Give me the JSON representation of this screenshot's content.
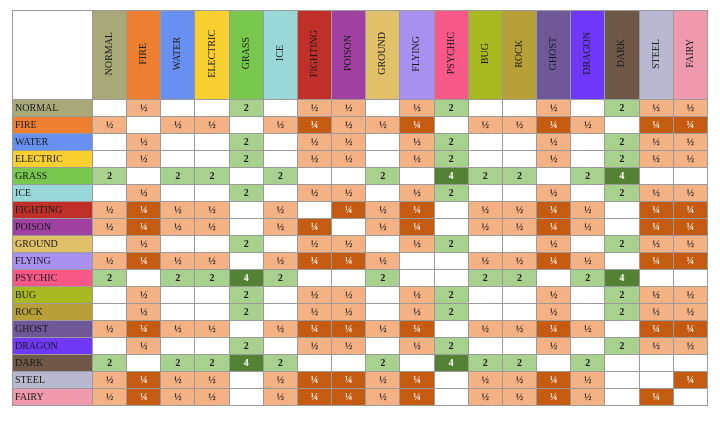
{
  "types": [
    {
      "name": "NORMAL",
      "color": "#a8a878"
    },
    {
      "name": "FIRE",
      "color": "#ee7f30"
    },
    {
      "name": "WATER",
      "color": "#6890f0"
    },
    {
      "name": "ELECTRIC",
      "color": "#f8d030"
    },
    {
      "name": "GRASS",
      "color": "#78c850"
    },
    {
      "name": "ICE",
      "color": "#98d8d8"
    },
    {
      "name": "FIGHTING",
      "color": "#c03028"
    },
    {
      "name": "POISON",
      "color": "#a040a0"
    },
    {
      "name": "GROUND",
      "color": "#e0c068"
    },
    {
      "name": "FLYING",
      "color": "#a890f0"
    },
    {
      "name": "PSYCHIC",
      "color": "#f85888"
    },
    {
      "name": "BUG",
      "color": "#a8b820"
    },
    {
      "name": "ROCK",
      "color": "#b8a038"
    },
    {
      "name": "GHOST",
      "color": "#705898"
    },
    {
      "name": "DRAGON",
      "color": "#7038f8"
    },
    {
      "name": "DARK",
      "color": "#705848"
    },
    {
      "name": "STEEL",
      "color": "#b8b8d0"
    },
    {
      "name": "FAIRY",
      "color": "#ee99ac"
    }
  ],
  "cell_colors": {
    "½": "#f4b183",
    "¼": "#c55a11",
    "2": "#a9d18e",
    "4": "#548235",
    "": "#ffffff"
  },
  "matrix": [
    [
      "",
      "½",
      "",
      "",
      "2",
      "",
      "½",
      "½",
      "",
      "½",
      "2",
      "",
      "",
      "½",
      "",
      "2",
      "½",
      "½"
    ],
    [
      "½",
      "",
      "½",
      "½",
      "",
      "½",
      "¼",
      "½",
      "½",
      "¼",
      "",
      "½",
      "½",
      "¼",
      "½",
      "",
      "¼",
      "¼"
    ],
    [
      "",
      "½",
      "",
      "",
      "2",
      "",
      "½",
      "½",
      "",
      "½",
      "2",
      "",
      "",
      "½",
      "",
      "2",
      "½",
      "½"
    ],
    [
      "",
      "½",
      "",
      "",
      "2",
      "",
      "½",
      "½",
      "",
      "½",
      "2",
      "",
      "",
      "½",
      "",
      "2",
      "½",
      "½"
    ],
    [
      "2",
      "",
      "2",
      "2",
      "",
      "2",
      "",
      "",
      "2",
      "",
      "4",
      "2",
      "2",
      "",
      "2",
      "4",
      "",
      ""
    ],
    [
      "",
      "½",
      "",
      "",
      "2",
      "",
      "½",
      "½",
      "",
      "½",
      "2",
      "",
      "",
      "½",
      "",
      "2",
      "½",
      "½"
    ],
    [
      "½",
      "¼",
      "½",
      "½",
      "",
      "½",
      "",
      "¼",
      "½",
      "¼",
      "",
      "½",
      "½",
      "¼",
      "½",
      "",
      "¼",
      "¼"
    ],
    [
      "½",
      "¼",
      "½",
      "½",
      "",
      "½",
      "¼",
      "",
      "½",
      "¼",
      "",
      "½",
      "½",
      "¼",
      "½",
      "",
      "¼",
      "¼"
    ],
    [
      "",
      "½",
      "",
      "",
      "2",
      "",
      "½",
      "½",
      "",
      "½",
      "2",
      "",
      "",
      "½",
      "",
      "2",
      "½",
      "½"
    ],
    [
      "½",
      "¼",
      "½",
      "½",
      "",
      "½",
      "¼",
      "¼",
      "½",
      "",
      "",
      "½",
      "½",
      "¼",
      "½",
      "",
      "¼",
      "¼"
    ],
    [
      "2",
      "",
      "2",
      "2",
      "4",
      "2",
      "",
      "",
      "2",
      "",
      "",
      "2",
      "2",
      "",
      "2",
      "4",
      "",
      ""
    ],
    [
      "",
      "½",
      "",
      "",
      "2",
      "",
      "½",
      "½",
      "",
      "½",
      "2",
      "",
      "",
      "½",
      "",
      "2",
      "½",
      "½"
    ],
    [
      "",
      "½",
      "",
      "",
      "2",
      "",
      "½",
      "½",
      "",
      "½",
      "2",
      "",
      "",
      "½",
      "",
      "2",
      "½",
      "½"
    ],
    [
      "½",
      "¼",
      "½",
      "½",
      "",
      "½",
      "¼",
      "¼",
      "½",
      "¼",
      "",
      "½",
      "½",
      "¼",
      "½",
      "",
      "¼",
      "¼"
    ],
    [
      "",
      "½",
      "",
      "",
      "2",
      "",
      "½",
      "½",
      "",
      "½",
      "2",
      "",
      "",
      "½",
      "",
      "2",
      "½",
      "½"
    ],
    [
      "2",
      "",
      "2",
      "2",
      "4",
      "2",
      "",
      "",
      "2",
      "",
      "4",
      "2",
      "2",
      "",
      "2",
      "",
      "",
      ""
    ],
    [
      "½",
      "¼",
      "½",
      "½",
      "",
      "½",
      "¼",
      "¼",
      "½",
      "¼",
      "",
      "½",
      "½",
      "¼",
      "½",
      "",
      "",
      "¼"
    ],
    [
      "½",
      "¼",
      "½",
      "½",
      "",
      "½",
      "¼",
      "¼",
      "½",
      "¼",
      "",
      "½",
      "½",
      "¼",
      "½",
      "",
      "¼",
      ""
    ]
  ]
}
